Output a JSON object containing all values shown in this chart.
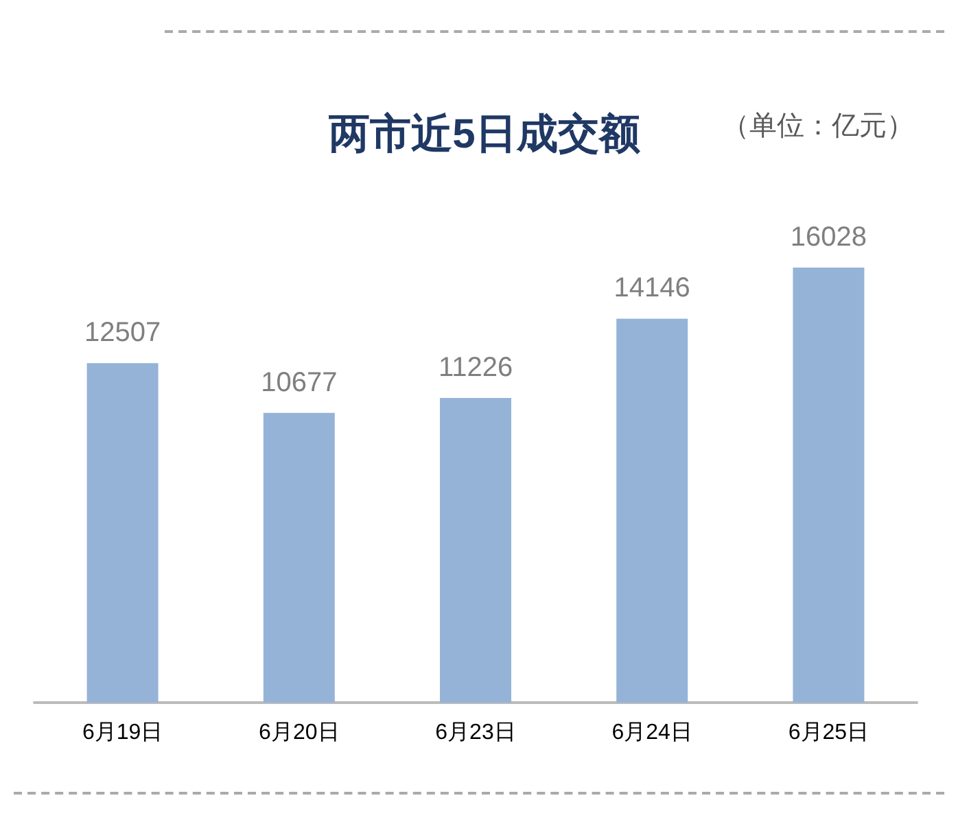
{
  "chart_data": {
    "type": "bar",
    "title": "两市近5日成交额",
    "ylabel": "（单位：亿元）",
    "categories": [
      "6月19日",
      "6月20日",
      "6月23日",
      "6月24日",
      "6月25日"
    ],
    "values": [
      12507,
      10677,
      11226,
      14146,
      16028
    ],
    "color": "#95b3d7",
    "data_labels": true
  }
}
